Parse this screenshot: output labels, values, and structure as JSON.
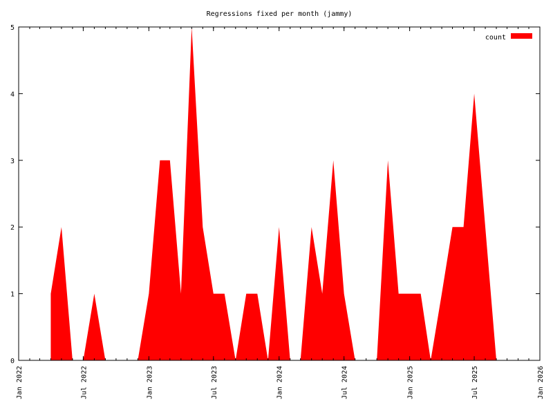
{
  "chart_data": {
    "type": "area",
    "title": "Regressions fixed per month (jammy)",
    "xlabel": "",
    "ylabel": "",
    "legend": {
      "label": "count",
      "position": "top-right"
    },
    "color": "#ff0000",
    "ylim": [
      0,
      5
    ],
    "yticks": [
      "0",
      "1",
      "2",
      "3",
      "4",
      "5"
    ],
    "xlim": [
      "2022-01-01",
      "2026-01-01"
    ],
    "xticks": [
      {
        "date": "2022-01-01",
        "label": "Jan 2022"
      },
      {
        "date": "2022-07-01",
        "label": "Jul 2022"
      },
      {
        "date": "2023-01-01",
        "label": "Jan 2023"
      },
      {
        "date": "2023-07-01",
        "label": "Jul 2023"
      },
      {
        "date": "2024-01-01",
        "label": "Jan 2024"
      },
      {
        "date": "2024-07-01",
        "label": "Jul 2024"
      },
      {
        "date": "2025-01-01",
        "label": "Jan 2025"
      },
      {
        "date": "2025-07-01",
        "label": "Jul 2025"
      },
      {
        "date": "2026-01-01",
        "label": "Jan 2026"
      }
    ],
    "grid": false,
    "series": [
      {
        "name": "count",
        "points": [
          [
            "2022-04-01",
            0
          ],
          [
            "2022-04-01",
            1
          ],
          [
            "2022-05-01",
            2
          ],
          [
            "2022-06-01",
            0
          ],
          [
            "2022-07-01",
            0
          ],
          [
            "2022-08-01",
            1
          ],
          [
            "2022-09-01",
            0
          ],
          [
            "2022-12-01",
            0
          ],
          [
            "2023-01-01",
            1
          ],
          [
            "2023-02-01",
            3
          ],
          [
            "2023-03-01",
            3
          ],
          [
            "2023-04-01",
            1
          ],
          [
            "2023-05-01",
            5
          ],
          [
            "2023-06-01",
            2
          ],
          [
            "2023-07-01",
            1
          ],
          [
            "2023-08-01",
            1
          ],
          [
            "2023-09-01",
            0
          ],
          [
            "2023-10-01",
            1
          ],
          [
            "2023-11-01",
            1
          ],
          [
            "2023-12-01",
            0
          ],
          [
            "2024-01-01",
            2
          ],
          [
            "2024-02-01",
            0
          ],
          [
            "2024-03-01",
            0
          ],
          [
            "2024-04-01",
            2
          ],
          [
            "2024-05-01",
            1
          ],
          [
            "2024-06-01",
            3
          ],
          [
            "2024-07-01",
            1
          ],
          [
            "2024-08-01",
            0
          ],
          [
            "2024-10-01",
            0
          ],
          [
            "2024-11-01",
            3
          ],
          [
            "2024-12-01",
            1
          ],
          [
            "2025-01-01",
            1
          ],
          [
            "2025-02-01",
            1
          ],
          [
            "2025-03-01",
            0
          ],
          [
            "2025-04-01",
            1
          ],
          [
            "2025-05-01",
            2
          ],
          [
            "2025-06-01",
            2
          ],
          [
            "2025-07-01",
            4
          ],
          [
            "2025-08-01",
            2
          ],
          [
            "2025-09-01",
            0
          ]
        ]
      }
    ]
  }
}
